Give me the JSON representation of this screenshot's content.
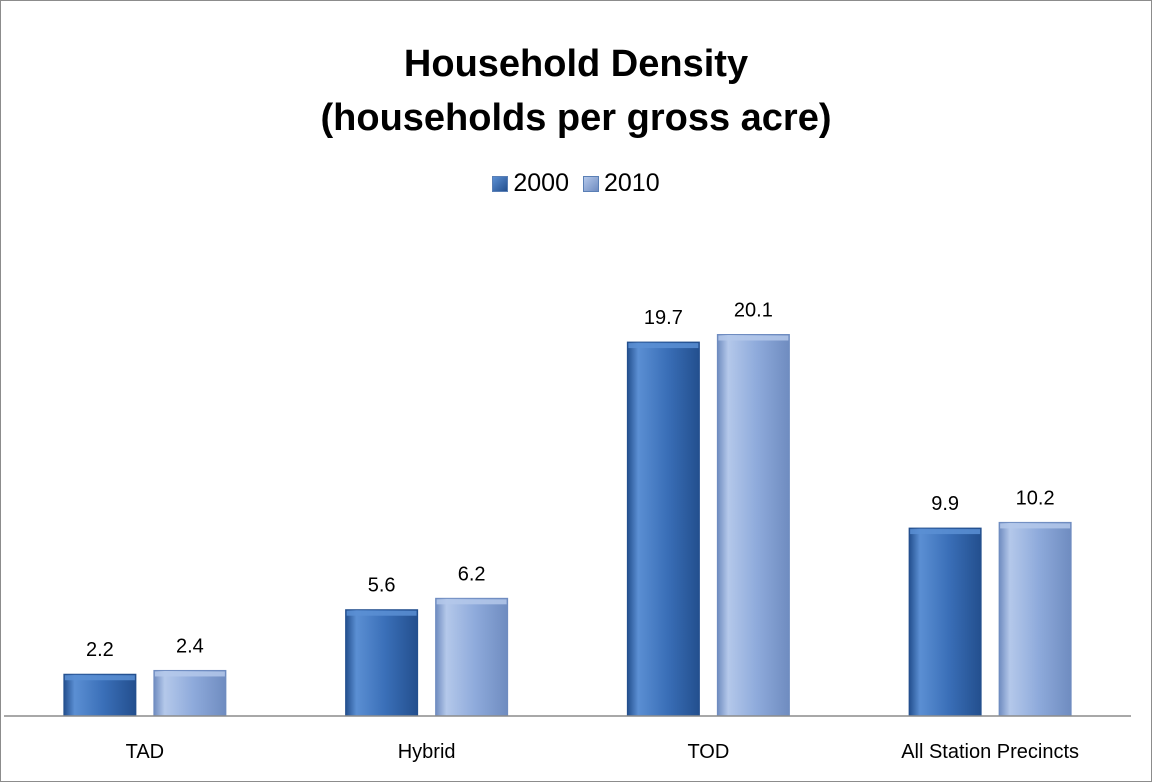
{
  "chart_data": {
    "type": "bar",
    "title_line1": "Household Density",
    "title_line2": "(households per gross acre)",
    "categories": [
      "TAD",
      "Hybrid",
      "TOD",
      "All Station Precincts"
    ],
    "series": [
      {
        "name": "2000",
        "values": [
          2.2,
          5.6,
          19.7,
          9.9
        ],
        "color": "#3a6fb8",
        "color_light": "#5b8fd3",
        "color_dark": "#234f8e"
      },
      {
        "name": "2010",
        "values": [
          2.4,
          6.2,
          20.1,
          10.2
        ],
        "color": "#8eaadb",
        "color_light": "#b4c8ea",
        "color_dark": "#6f8cc0"
      }
    ],
    "data_labels": true,
    "legend_position": "top",
    "grid": false,
    "ylim": [
      0,
      22
    ]
  }
}
